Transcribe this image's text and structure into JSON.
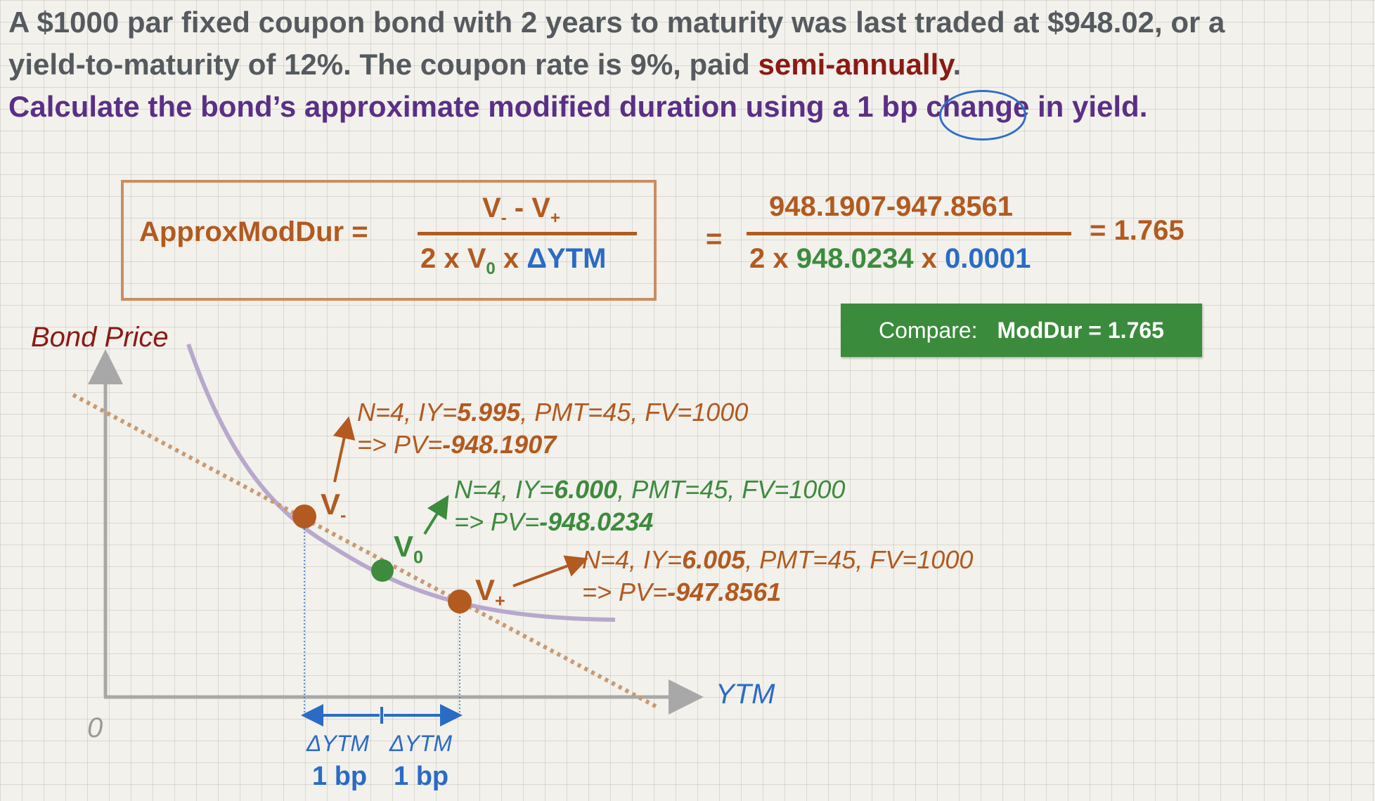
{
  "problem": {
    "line1": "A $1000 par fixed coupon bond with 2 years to maturity was last traded at $948.02, or a",
    "line2_pre": "yield-to-maturity of 12%.  The coupon rate is 9%, paid ",
    "line2_emph": "semi-annually",
    "line2_post": "."
  },
  "question": {
    "pre": "Calculate the bond’s approximate modified duration using a ",
    "highlight": "1 bp",
    "post": " change in yield."
  },
  "formula": {
    "label": "ApproxModDur =",
    "num_v": "V",
    "num_minus_sub": "-",
    "num_op": " - V",
    "num_plus_sub": "+",
    "den_pre": "2 x V",
    "den_sub": "0",
    "den_mid": " x ",
    "den_delta": "ΔYTM",
    "equals": "=",
    "num_values": "948.1907-947.8561",
    "den_pre_values": "2 x ",
    "den_v0_value": "948.0234",
    "den_x": " x ",
    "den_dytm_value": "0.0001",
    "result": "= 1.765"
  },
  "compare": {
    "label": "Compare:",
    "value": "ModDur = 1.765"
  },
  "graph": {
    "y_axis_label": "Bond Price",
    "x_axis_label": "YTM",
    "origin_label": "0",
    "v_minus": {
      "base": "V",
      "sub": "-"
    },
    "v_zero": {
      "base": "V",
      "sub": "0"
    },
    "v_plus": {
      "base": "V",
      "sub": "+"
    },
    "callout_minus": {
      "pre": "N=4, IY=",
      "iy": "5.995",
      "post": ", PMT=45, FV=1000",
      "pv_pre": "=> PV=",
      "pv": "-948.1907"
    },
    "callout_zero": {
      "pre": "N=4, IY=",
      "iy": "6.000",
      "post": ", PMT=45, FV=1000",
      "pv_pre": "=> PV=",
      "pv": "-948.0234"
    },
    "callout_plus": {
      "pre": "N=4, IY=",
      "iy": "6.005",
      "post": ", PMT=45, FV=1000",
      "pv_pre": "=> PV=",
      "pv": "-947.8561"
    },
    "delta_left": "ΔYTM",
    "delta_right": "ΔYTM",
    "bp_left": "1 bp",
    "bp_right": "1 bp"
  },
  "colors": {
    "orange": "#b25a1f",
    "green": "#3d8b3d",
    "blue": "#2a6bc5",
    "purple": "#5a2f85",
    "dark_red": "#8b1a14"
  }
}
